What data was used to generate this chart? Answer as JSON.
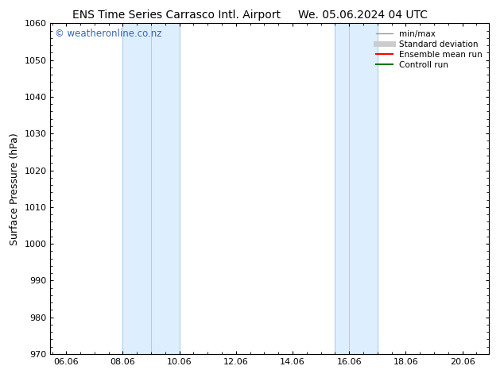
{
  "title_left": "ENS Time Series Carrasco Intl. Airport",
  "title_right": "We. 05.06.2024 04 UTC",
  "ylabel": "Surface Pressure (hPa)",
  "ylim": [
    970,
    1060
  ],
  "yticks": [
    970,
    980,
    990,
    1000,
    1010,
    1020,
    1030,
    1040,
    1050,
    1060
  ],
  "xlim_start": 5.5,
  "xlim_end": 21.0,
  "xtick_positions": [
    6.06,
    8.06,
    10.06,
    12.06,
    14.06,
    16.06,
    18.06,
    20.06
  ],
  "xtick_labels": [
    "06.06",
    "08.06",
    "10.06",
    "12.06",
    "14.06",
    "16.06",
    "18.06",
    "20.06"
  ],
  "shaded_bands": [
    {
      "x_start": 8.06,
      "x_end": 9.06
    },
    {
      "x_start": 9.56,
      "x_end": 10.06
    },
    {
      "x_start": 15.56,
      "x_end": 16.06
    },
    {
      "x_start": 16.06,
      "x_end": 17.06
    }
  ],
  "shaded_color": "#ddeeff",
  "watermark_text": "© weatheronline.co.nz",
  "watermark_color": "#3366bb",
  "background_color": "#ffffff",
  "plot_bg_color": "#ffffff",
  "legend_entries": [
    {
      "label": "min/max",
      "color": "#999999",
      "lw": 1.0
    },
    {
      "label": "Standard deviation",
      "color": "#cccccc",
      "lw": 5
    },
    {
      "label": "Ensemble mean run",
      "color": "#ff0000",
      "lw": 1.5
    },
    {
      "label": "Controll run",
      "color": "#007700",
      "lw": 1.5
    }
  ],
  "title_fontsize": 10,
  "axis_label_fontsize": 9,
  "tick_fontsize": 8,
  "legend_fontsize": 7.5,
  "watermark_fontsize": 8.5
}
